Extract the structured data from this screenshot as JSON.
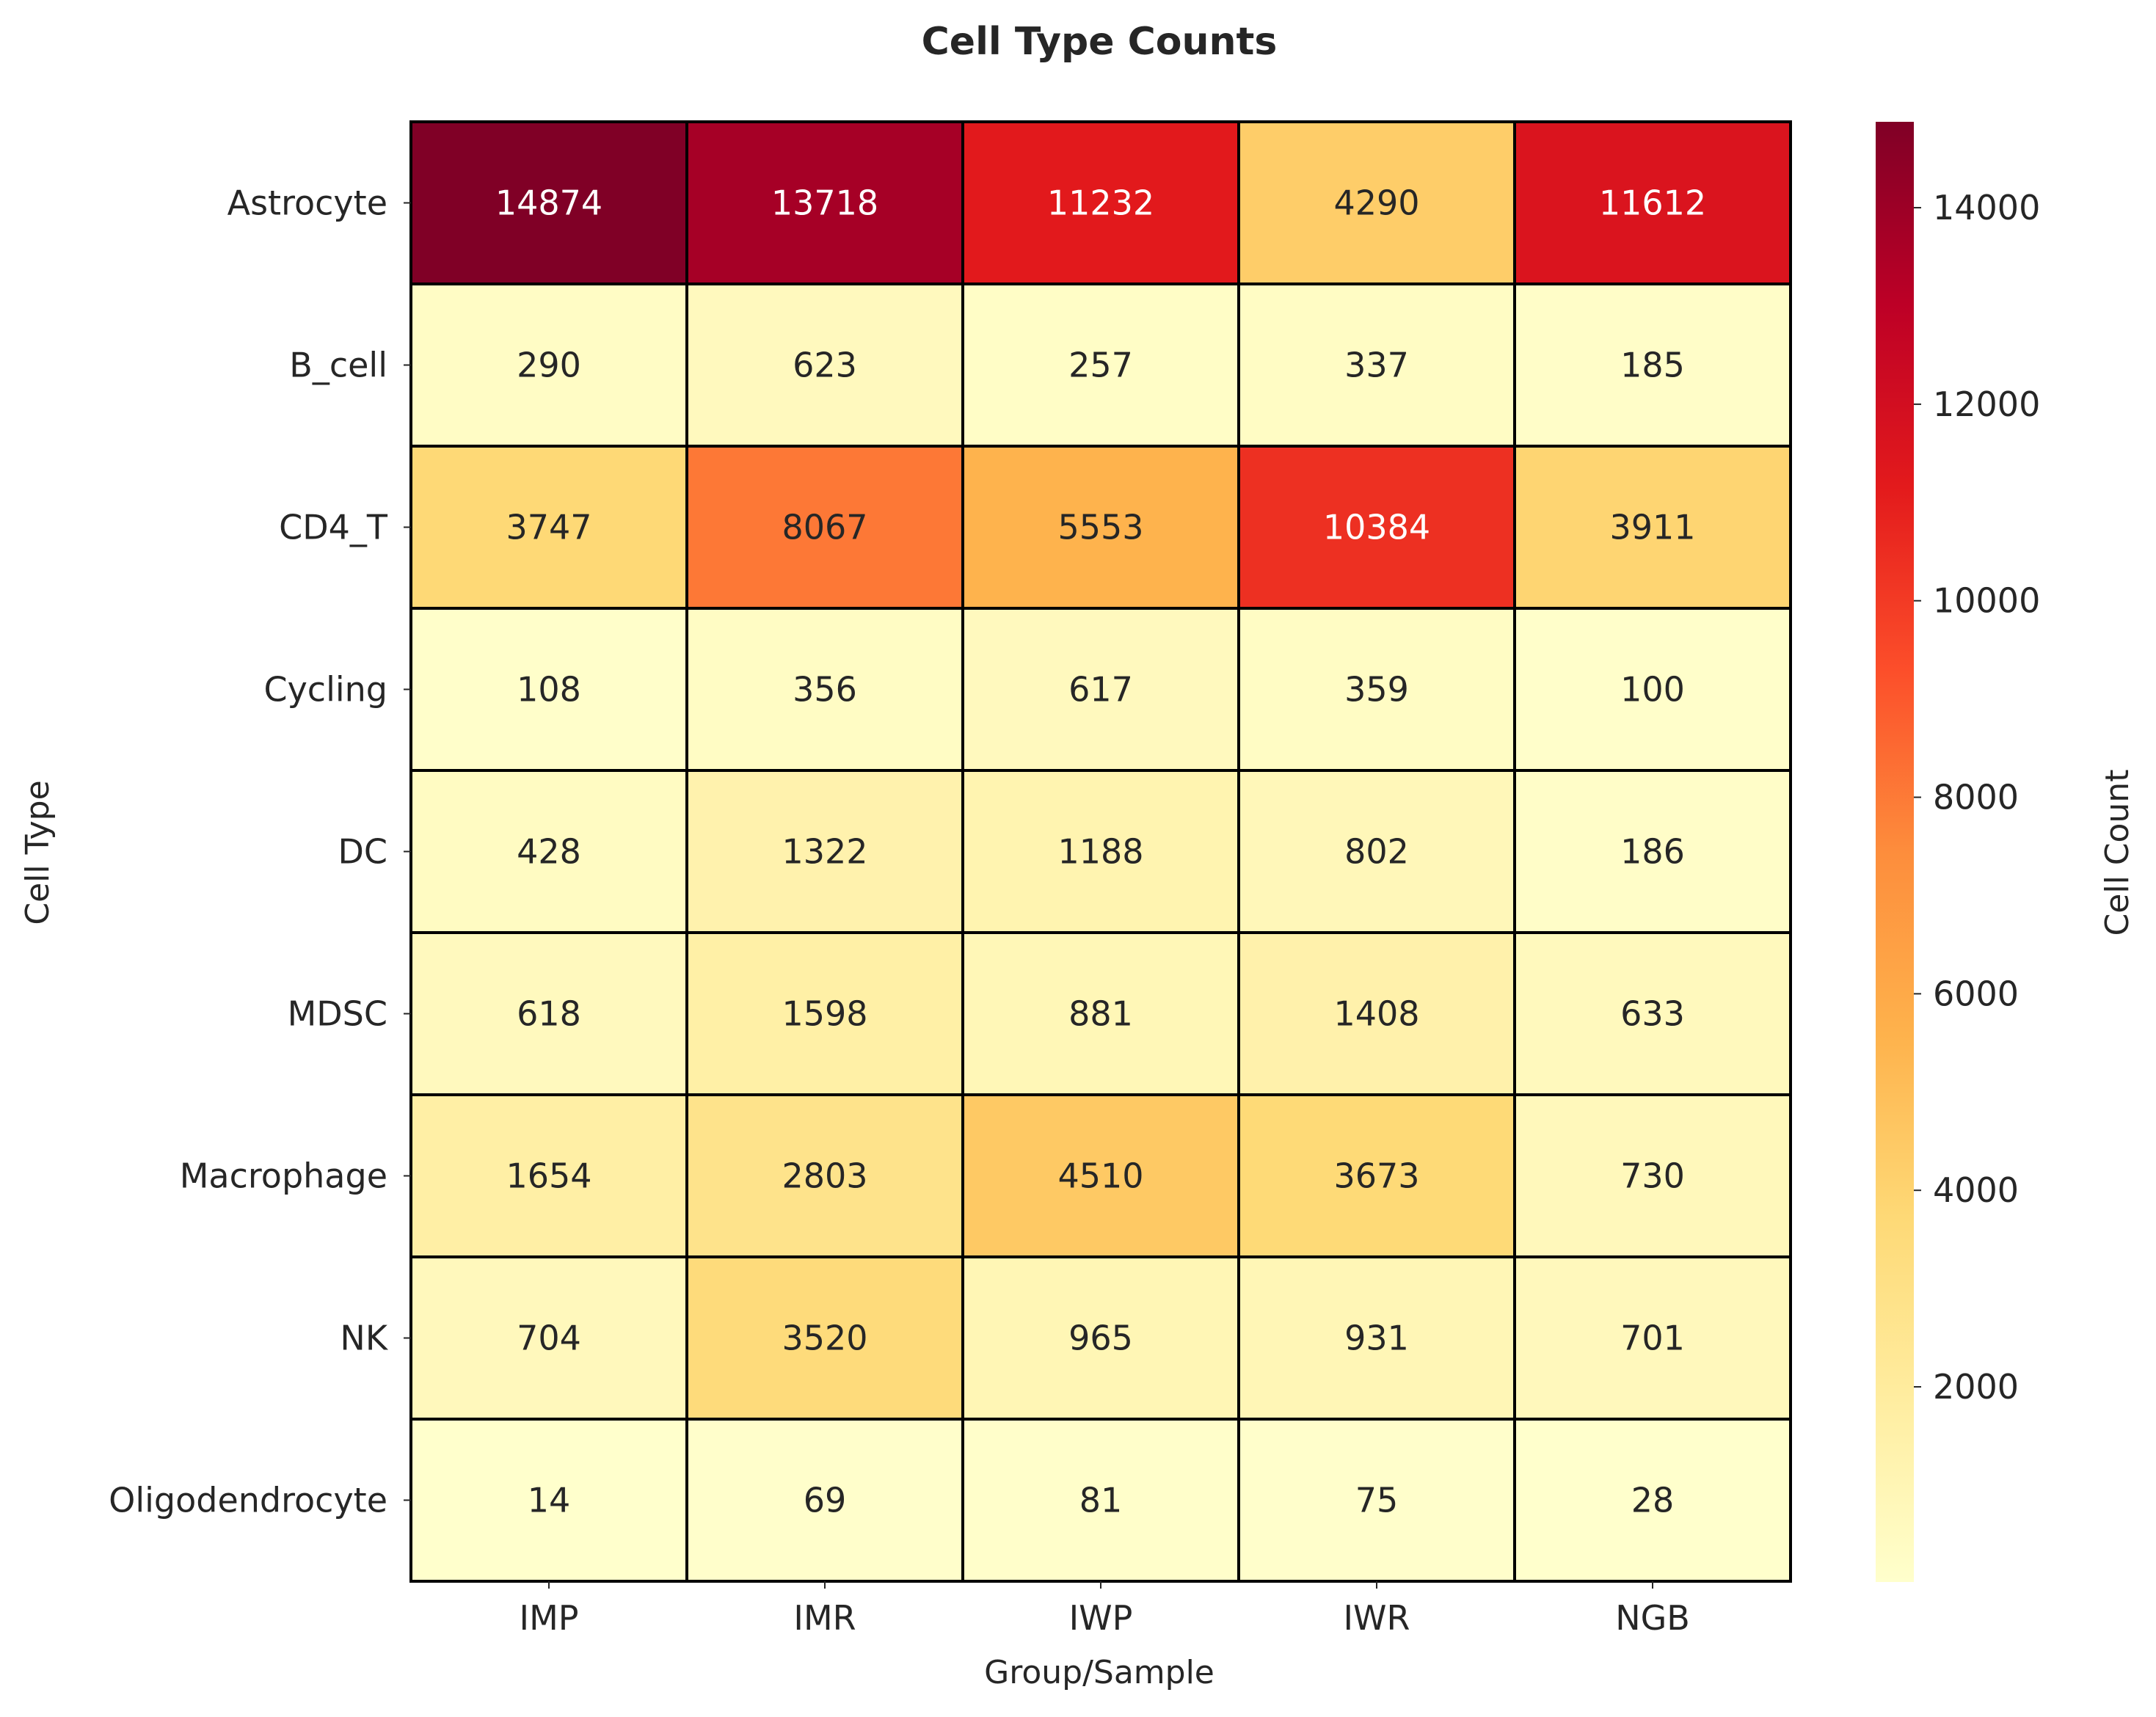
{
  "chart_data": {
    "type": "heatmap",
    "title": "Cell Type Counts",
    "xlabel": "Group/Sample",
    "ylabel": "Cell Type",
    "x_categories": [
      "IMP",
      "IMR",
      "IWP",
      "IWR",
      "NGB"
    ],
    "y_categories": [
      "Astrocyte",
      "B_cell",
      "CD4_T",
      "Cycling",
      "DC",
      "MDSC",
      "Macrophage",
      "NK",
      "Oligodendrocyte"
    ],
    "values": [
      [
        14874,
        13718,
        11232,
        4290,
        11612
      ],
      [
        290,
        623,
        257,
        337,
        185
      ],
      [
        3747,
        8067,
        5553,
        10384,
        3911
      ],
      [
        108,
        356,
        617,
        359,
        100
      ],
      [
        428,
        1322,
        1188,
        802,
        186
      ],
      [
        618,
        1598,
        881,
        1408,
        633
      ],
      [
        1654,
        2803,
        4510,
        3673,
        730
      ],
      [
        704,
        3520,
        965,
        931,
        701
      ],
      [
        14,
        69,
        81,
        75,
        28
      ]
    ],
    "colorscale": "YlOrRd",
    "color_range": [
      14,
      14874
    ],
    "colorbar": {
      "label": "Cell Count",
      "ticks": [
        2000,
        4000,
        6000,
        8000,
        10000,
        12000,
        14000
      ]
    },
    "annotation_colors": {
      "dark_text": "#262626",
      "light_text": "#ffffff"
    },
    "cell_border_color": "#000000"
  }
}
